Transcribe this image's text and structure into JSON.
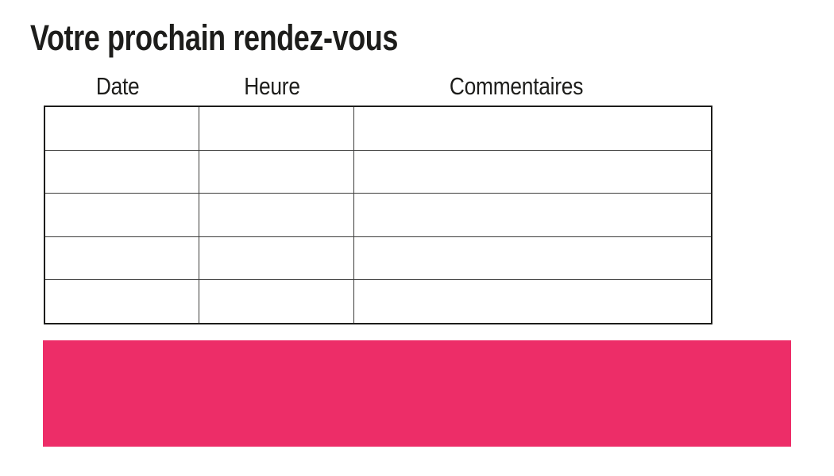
{
  "title": "Votre prochain rendez-vous",
  "table": {
    "columns": [
      {
        "label": "Date"
      },
      {
        "label": "Heure"
      },
      {
        "label": "Commentaires"
      }
    ],
    "rows": [
      [
        "",
        "",
        ""
      ],
      [
        "",
        "",
        ""
      ],
      [
        "",
        "",
        ""
      ],
      [
        "",
        "",
        ""
      ],
      [
        "",
        "",
        ""
      ]
    ]
  },
  "banner": {
    "color": "#ED2D68"
  },
  "colors": {
    "text": "#1d1d1b",
    "table_border_outer": "#1d1d1b",
    "table_border_inner": "#3c3c3b",
    "background": "#ffffff"
  }
}
